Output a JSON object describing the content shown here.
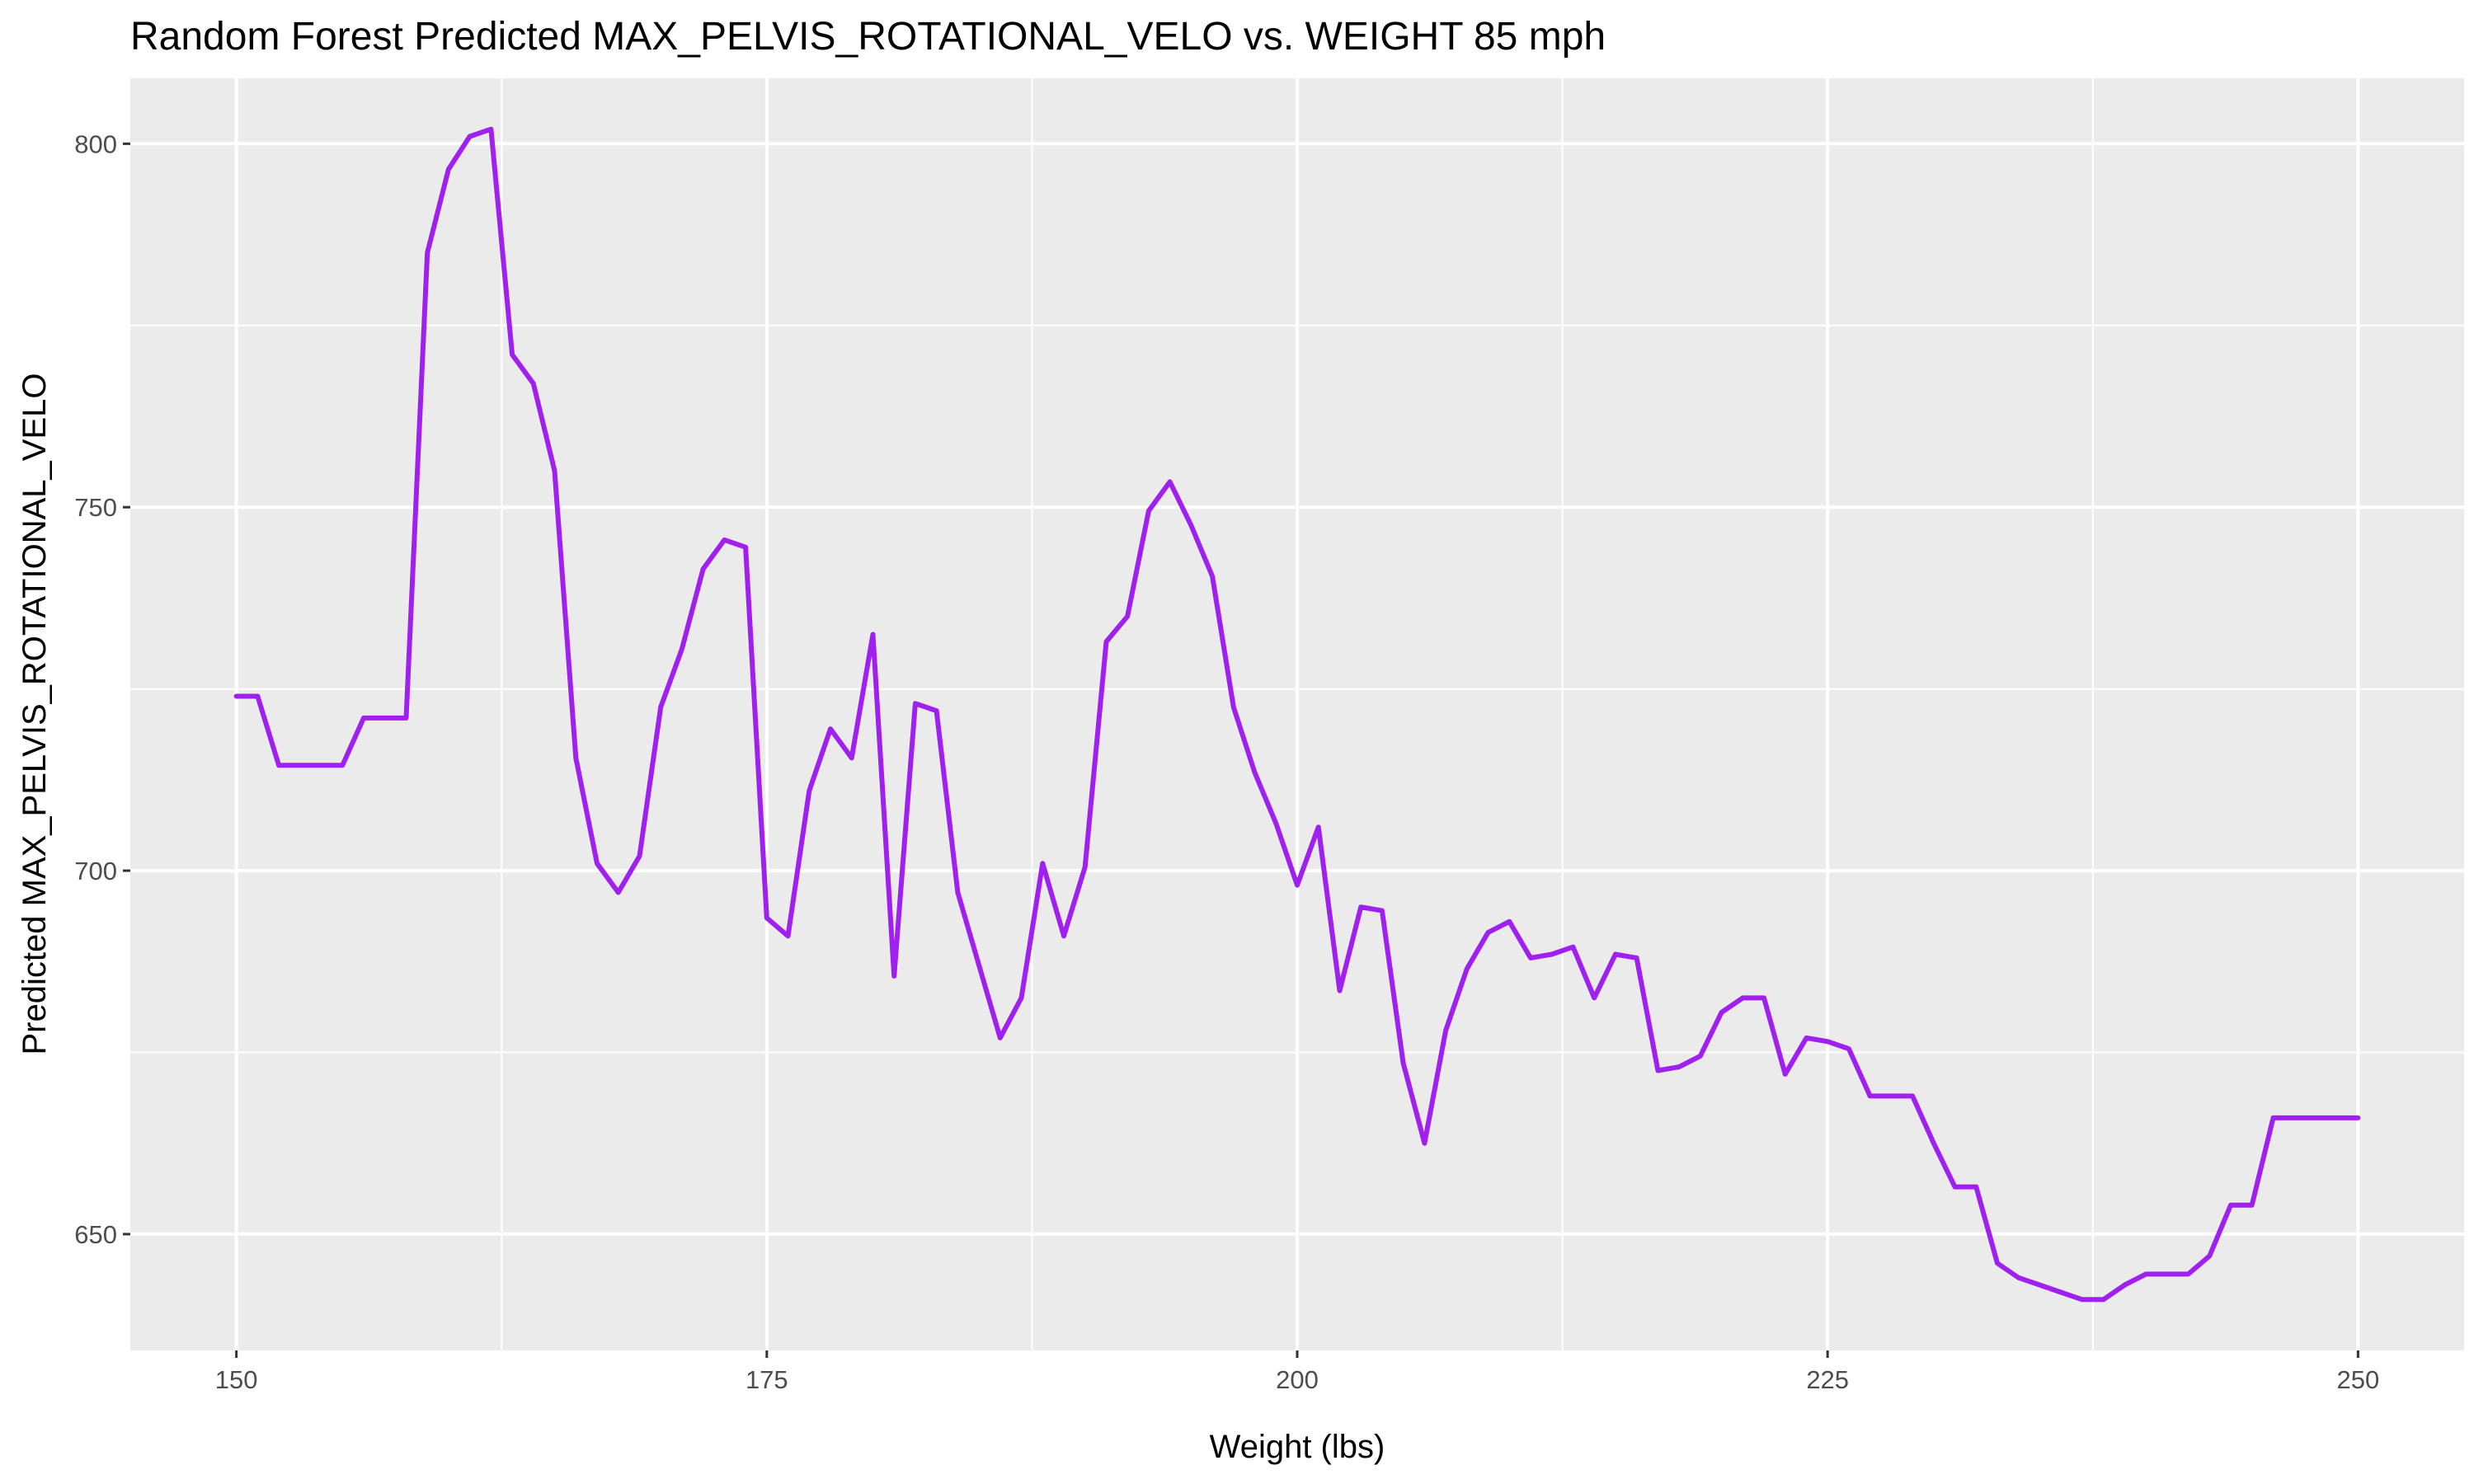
{
  "chart_data": {
    "type": "line",
    "title": "Random Forest Predicted MAX_PELVIS_ROTATIONAL_VELO vs. WEIGHT 85 mph",
    "xlabel": "Weight (lbs)",
    "ylabel": "Predicted MAX_PELVIS_ROTATIONAL_VELO",
    "xlim": [
      145,
      255
    ],
    "ylim": [
      634,
      809
    ],
    "x_ticks": [
      150,
      175,
      200,
      225,
      250
    ],
    "y_ticks": [
      650,
      700,
      750,
      800
    ],
    "grid": true,
    "legend": "none",
    "colors": {
      "line": "#a020f0",
      "panel": "#ebebeb",
      "grid": "#ffffff"
    },
    "x": [
      150,
      151,
      152,
      153,
      154,
      155,
      156,
      157,
      158,
      159,
      160,
      161,
      162,
      163,
      164,
      165,
      166,
      167,
      168,
      169,
      170,
      171,
      172,
      173,
      174,
      175,
      176,
      177,
      178,
      179,
      180,
      181,
      182,
      183,
      184,
      185,
      186,
      187,
      188,
      189,
      190,
      191,
      192,
      193,
      194,
      195,
      196,
      197,
      198,
      199,
      200,
      201,
      202,
      203,
      204,
      205,
      206,
      207,
      208,
      209,
      210,
      211,
      212,
      213,
      214,
      215,
      216,
      217,
      218,
      219,
      220,
      221,
      222,
      223,
      224,
      225,
      226,
      227,
      228,
      229,
      230,
      231,
      232,
      233,
      234,
      235,
      236,
      237,
      238,
      239,
      240,
      241,
      242,
      243,
      244,
      245,
      246,
      247,
      248,
      249,
      250
    ],
    "y": [
      724,
      724,
      714.5,
      714.5,
      714.5,
      714.5,
      721,
      721,
      721,
      785,
      796.5,
      801,
      802,
      771,
      767,
      755,
      715.5,
      701,
      697,
      702,
      722.5,
      730.5,
      741.5,
      745.5,
      744.5,
      693.5,
      691,
      711,
      719.5,
      715.5,
      732.5,
      685.5,
      723,
      722,
      697,
      687,
      677,
      682.5,
      701,
      691,
      700.5,
      731.5,
      735,
      749.5,
      753.5,
      747.5,
      740.5,
      722.5,
      713.5,
      706.5,
      698,
      706,
      683.5,
      695,
      694.5,
      673.5,
      662.5,
      678,
      686.5,
      691.5,
      693,
      688,
      688.5,
      689.5,
      682.5,
      688.5,
      688,
      672.5,
      673,
      674.5,
      680.5,
      682.5,
      682.5,
      672,
      677,
      676.5,
      675.5,
      669,
      669,
      669,
      662.5,
      656.5,
      656.5,
      646,
      644,
      643,
      642,
      641,
      641,
      643,
      644.5,
      644.5,
      644.5,
      647,
      654,
      654,
      666,
      666,
      666,
      666,
      666
    ]
  }
}
